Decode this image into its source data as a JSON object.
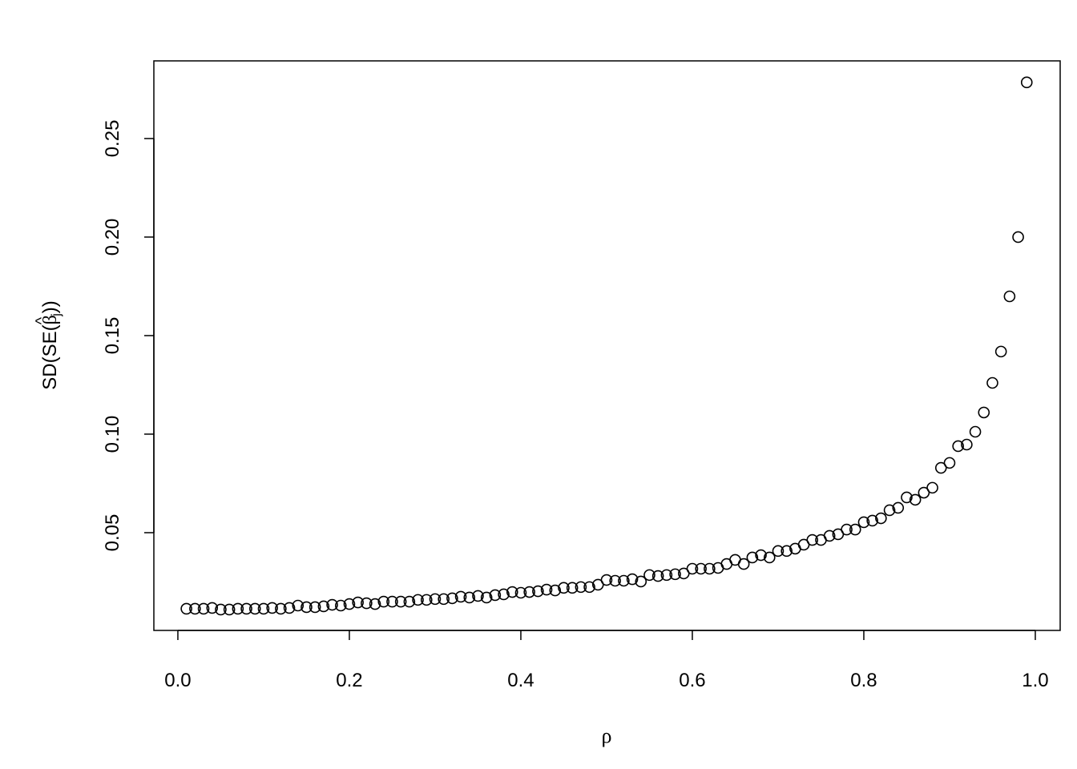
{
  "chart_data": {
    "type": "scatter",
    "title": "",
    "xlabel": "ρ",
    "ylabel": {
      "prefix": "SD(SE(",
      "symbol": "β",
      "hat": "^",
      "subscript": "j",
      "suffix": "))"
    },
    "xlim": [
      -0.028,
      1.029
    ],
    "ylim": [
      0.0004,
      0.2894
    ],
    "xticks": [
      0.0,
      0.2,
      0.4,
      0.6,
      0.8,
      1.0
    ],
    "xtick_labels": [
      "0.0",
      "0.2",
      "0.4",
      "0.6",
      "0.8",
      "1.0"
    ],
    "yticks": [
      0.05,
      0.1,
      0.15,
      0.2,
      0.25
    ],
    "ytick_labels": [
      "0.05",
      "0.10",
      "0.15",
      "0.20",
      "0.25"
    ],
    "grid": false,
    "marker": "open-circle",
    "color": "#000000",
    "x": [
      0.01,
      0.02,
      0.03,
      0.04,
      0.05,
      0.06,
      0.07,
      0.08,
      0.09,
      0.1,
      0.11,
      0.12,
      0.13,
      0.14,
      0.15,
      0.16,
      0.17,
      0.18,
      0.19,
      0.2,
      0.21,
      0.22,
      0.23,
      0.24,
      0.25,
      0.26,
      0.27,
      0.28,
      0.29,
      0.3,
      0.31,
      0.32,
      0.33,
      0.34,
      0.35,
      0.36,
      0.37,
      0.38,
      0.39,
      0.4,
      0.41,
      0.42,
      0.43,
      0.44,
      0.45,
      0.46,
      0.47,
      0.48,
      0.49,
      0.5,
      0.51,
      0.52,
      0.53,
      0.54,
      0.55,
      0.56,
      0.57,
      0.58,
      0.59,
      0.6,
      0.61,
      0.62,
      0.63,
      0.64,
      0.65,
      0.66,
      0.67,
      0.68,
      0.69,
      0.7,
      0.71,
      0.72,
      0.73,
      0.74,
      0.75,
      0.76,
      0.77,
      0.78,
      0.79,
      0.8,
      0.81,
      0.82,
      0.83,
      0.84,
      0.85,
      0.86,
      0.87,
      0.88,
      0.89,
      0.9,
      0.91,
      0.92,
      0.93,
      0.94,
      0.95,
      0.96,
      0.97,
      0.98,
      0.99
    ],
    "y": [
      0.0114,
      0.0114,
      0.0114,
      0.0118,
      0.011,
      0.011,
      0.0114,
      0.0114,
      0.0114,
      0.0114,
      0.0118,
      0.0114,
      0.0118,
      0.013,
      0.0122,
      0.0122,
      0.0126,
      0.0134,
      0.013,
      0.0138,
      0.0146,
      0.0142,
      0.0138,
      0.015,
      0.015,
      0.015,
      0.015,
      0.0159,
      0.0159,
      0.0163,
      0.0163,
      0.0167,
      0.0175,
      0.0171,
      0.0179,
      0.0171,
      0.0183,
      0.0187,
      0.0199,
      0.0195,
      0.0199,
      0.0203,
      0.0211,
      0.0207,
      0.022,
      0.022,
      0.0224,
      0.0224,
      0.0236,
      0.026,
      0.0256,
      0.0256,
      0.0264,
      0.0252,
      0.0285,
      0.028,
      0.0285,
      0.0289,
      0.0293,
      0.0317,
      0.0317,
      0.0317,
      0.0321,
      0.0341,
      0.0362,
      0.0341,
      0.0374,
      0.0386,
      0.0374,
      0.0407,
      0.0407,
      0.0419,
      0.0439,
      0.0463,
      0.0463,
      0.0484,
      0.0492,
      0.0516,
      0.0516,
      0.0553,
      0.0561,
      0.0573,
      0.0614,
      0.0626,
      0.0679,
      0.0667,
      0.0703,
      0.0728,
      0.0829,
      0.0854,
      0.0939,
      0.0947,
      0.1012,
      0.111,
      0.126,
      0.1419,
      0.1699,
      0.2,
      0.2785
    ]
  }
}
